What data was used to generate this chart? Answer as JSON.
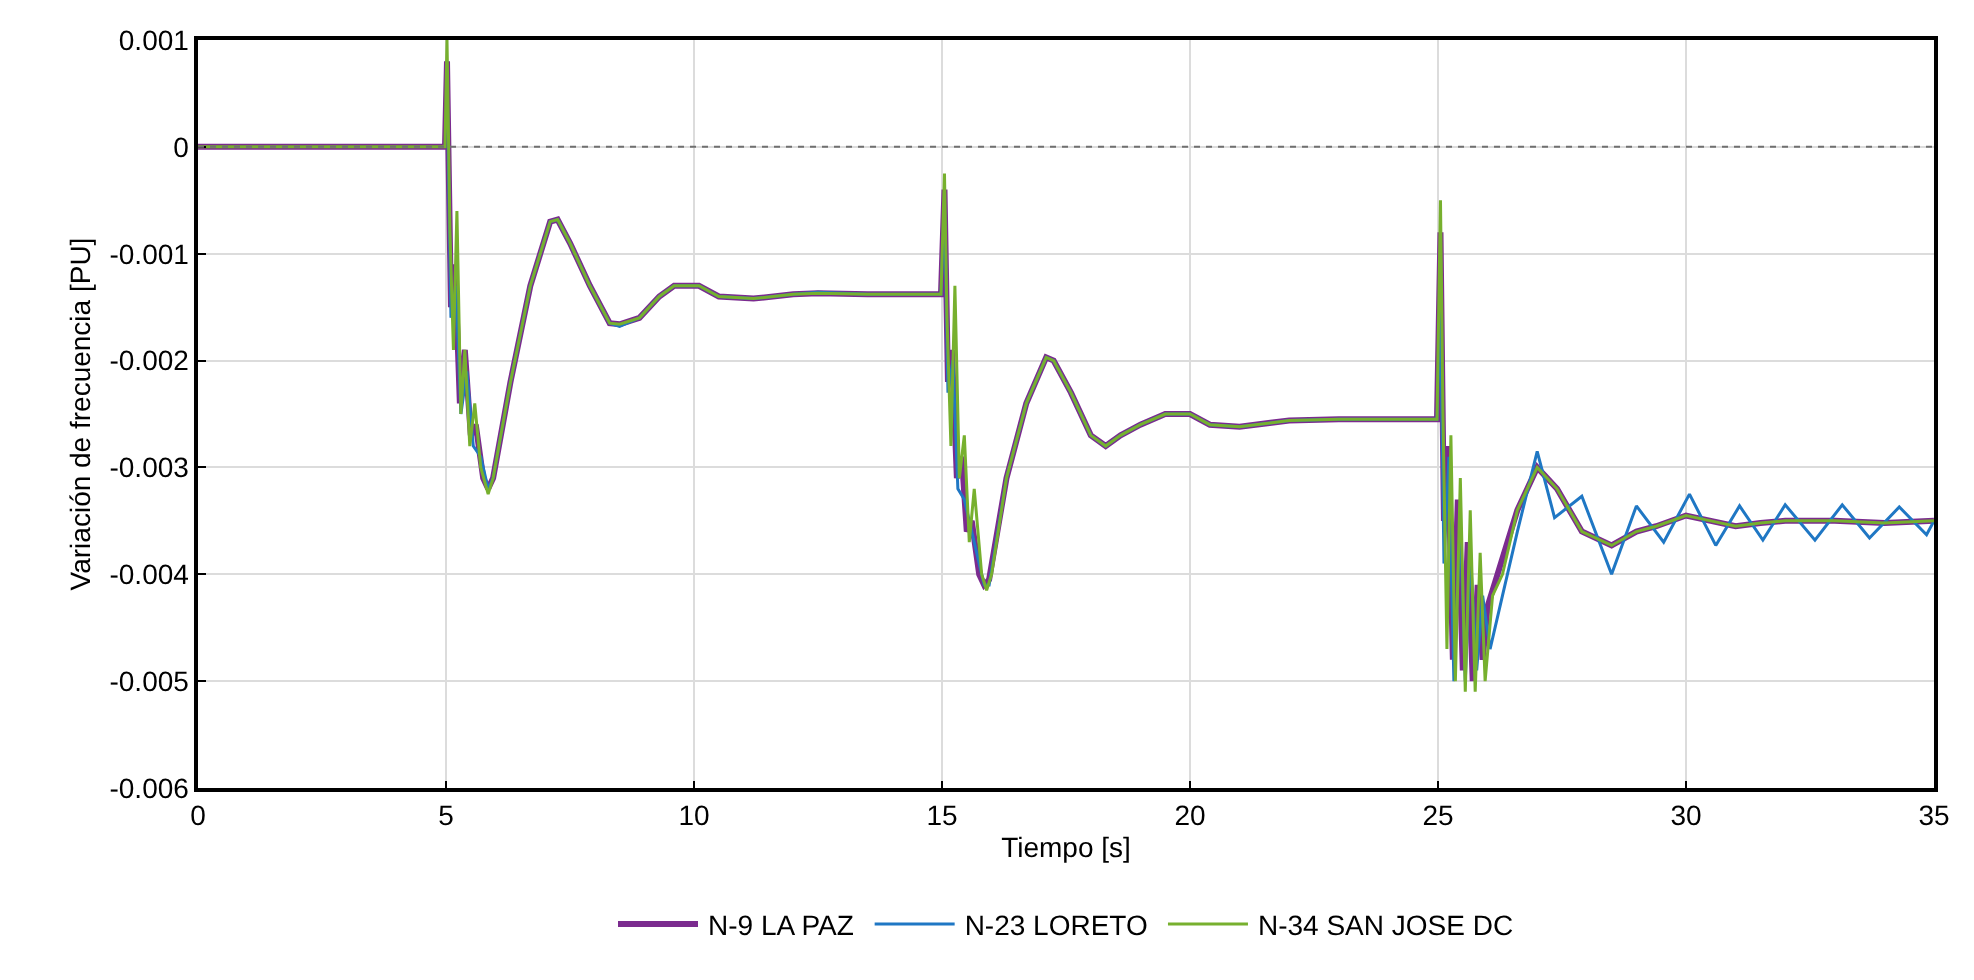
{
  "chart_data": {
    "type": "line",
    "xlabel": "Tiempo [s]",
    "ylabel": "Variación de frecuencia [PU]",
    "xlim": [
      0,
      35
    ],
    "xticks": [
      0,
      5,
      10,
      15,
      20,
      25,
      30,
      35
    ],
    "ylim": [
      -0.006,
      0.001
    ],
    "yticks": [
      -0.006,
      -0.005,
      -0.004,
      -0.003,
      -0.002,
      -0.001,
      0,
      0.001
    ],
    "grid": true,
    "legend": "bottom",
    "line_style": "solid",
    "marker": "none",
    "ref_lines": [
      {
        "axis": "y",
        "value": 0,
        "color": "#707070",
        "line_style": "dotted"
      }
    ],
    "series": [
      {
        "name": "N-9 LA PAZ",
        "color": "#7b2b8f",
        "x": [
          0,
          4.98,
          5.02,
          5.1,
          5.18,
          5.28,
          5.38,
          5.5,
          5.6,
          5.75,
          5.85,
          5.95,
          6.3,
          6.7,
          7.1,
          7.25,
          7.5,
          7.9,
          8.3,
          8.5,
          8.9,
          9.3,
          9.6,
          10.1,
          10.5,
          11.2,
          12,
          12.5,
          13.5,
          14.98,
          15.05,
          15.12,
          15.2,
          15.3,
          15.4,
          15.5,
          15.6,
          15.75,
          15.85,
          15.95,
          16.3,
          16.7,
          17.1,
          17.25,
          17.6,
          18.0,
          18.3,
          18.6,
          19.0,
          19.5,
          20,
          20.4,
          21,
          22,
          23,
          24.98,
          25.05,
          25.12,
          25.2,
          25.3,
          25.4,
          25.5,
          25.6,
          25.7,
          25.8,
          25.9,
          26.0,
          26.2,
          26.6,
          27.0,
          27.4,
          27.9,
          28.5,
          29.0,
          29.4,
          30,
          30.5,
          31,
          31.5,
          32,
          33,
          34,
          35
        ],
        "values": [
          0,
          0,
          0.0008,
          -0.0015,
          -0.0011,
          -0.0024,
          -0.0019,
          -0.0027,
          -0.0026,
          -0.0031,
          -0.0032,
          -0.0031,
          -0.0022,
          -0.0013,
          -0.0007,
          -0.00068,
          -0.0009,
          -0.0013,
          -0.00165,
          -0.00166,
          -0.0016,
          -0.0014,
          -0.0013,
          -0.0013,
          -0.0014,
          -0.00142,
          -0.00138,
          -0.00137,
          -0.00138,
          -0.00138,
          -0.0004,
          -0.0022,
          -0.0019,
          -0.0031,
          -0.0029,
          -0.0036,
          -0.0035,
          -0.004,
          -0.0041,
          -0.00405,
          -0.0031,
          -0.0024,
          -0.00197,
          -0.002,
          -0.0023,
          -0.0027,
          -0.0028,
          -0.0027,
          -0.0026,
          -0.0025,
          -0.0025,
          -0.0026,
          -0.00262,
          -0.00256,
          -0.00255,
          -0.00255,
          -0.0008,
          -0.0035,
          -0.0028,
          -0.0048,
          -0.0033,
          -0.0049,
          -0.0037,
          -0.005,
          -0.0041,
          -0.0048,
          -0.0043,
          -0.004,
          -0.0034,
          -0.003,
          -0.0032,
          -0.0036,
          -0.00373,
          -0.0036,
          -0.00355,
          -0.00345,
          -0.0035,
          -0.00355,
          -0.00352,
          -0.0035,
          -0.0035,
          -0.00352,
          -0.0035
        ]
      },
      {
        "name": "N-23 LORETO",
        "color": "#1f77c4",
        "x": [
          5.02,
          5.1,
          5.2,
          5.3,
          5.42,
          5.55,
          5.7,
          5.85,
          5.95,
          6.3,
          6.7,
          7.1,
          7.25,
          7.5,
          7.9,
          8.3,
          8.5,
          8.9,
          9.3,
          9.6,
          10.1,
          10.5,
          11.2,
          12,
          12.5,
          13.5,
          14.98,
          15.05,
          15.12,
          15.22,
          15.32,
          15.45,
          15.6,
          15.75,
          15.85,
          15.95,
          16.3,
          16.7,
          17.1,
          17.25,
          17.6,
          18.0,
          18.3,
          18.6,
          19.0,
          19.5,
          20,
          20.4,
          21,
          22,
          23,
          24.98,
          25.05,
          25.12,
          25.22,
          25.32,
          25.45,
          25.55,
          25.65,
          25.78,
          25.9,
          26.05,
          26.3,
          26.6,
          27.0,
          27.35,
          27.9,
          28.5,
          29.0,
          29.55,
          30.07,
          30.6,
          31.08,
          31.55,
          32.0,
          32.6,
          33.15,
          33.7,
          34.3,
          34.85,
          35
        ],
        "values": [
          0.0007,
          -0.0016,
          -0.0013,
          -0.0025,
          -0.0021,
          -0.0028,
          -0.0029,
          -0.0032,
          -0.0031,
          -0.0022,
          -0.0013,
          -0.0007,
          -0.00068,
          -0.0009,
          -0.0013,
          -0.00165,
          -0.00168,
          -0.0016,
          -0.0014,
          -0.0013,
          -0.0013,
          -0.0014,
          -0.00142,
          -0.00138,
          -0.00136,
          -0.00138,
          -0.00138,
          -0.0005,
          -0.0023,
          -0.002,
          -0.0032,
          -0.0033,
          -0.0036,
          -0.0039,
          -0.0041,
          -0.0041,
          -0.0031,
          -0.0024,
          -0.00197,
          -0.002,
          -0.0023,
          -0.0027,
          -0.0028,
          -0.0027,
          -0.0026,
          -0.0025,
          -0.0025,
          -0.0026,
          -0.00262,
          -0.00256,
          -0.00255,
          -0.00255,
          -0.0015,
          -0.0039,
          -0.0029,
          -0.005,
          -0.0035,
          -0.005,
          -0.0038,
          -0.0049,
          -0.0042,
          -0.0047,
          -0.0042,
          -0.0036,
          -0.00285,
          -0.00347,
          -0.00327,
          -0.004,
          -0.00336,
          -0.0037,
          -0.00325,
          -0.00373,
          -0.00336,
          -0.00368,
          -0.00335,
          -0.00368,
          -0.00335,
          -0.00366,
          -0.00337,
          -0.00363,
          -0.0035
        ]
      },
      {
        "name": "N-34 SAN JOSE DC",
        "color": "#77b02e",
        "x": [
          0,
          4.98,
          5.02,
          5.08,
          5.15,
          5.22,
          5.3,
          5.38,
          5.48,
          5.58,
          5.7,
          5.85,
          5.95,
          6.3,
          6.7,
          7.1,
          7.25,
          7.5,
          7.9,
          8.3,
          8.5,
          8.9,
          9.3,
          9.6,
          10.1,
          10.5,
          11.2,
          12,
          12.5,
          13.5,
          14.98,
          15.05,
          15.1,
          15.18,
          15.26,
          15.35,
          15.45,
          15.55,
          15.65,
          15.8,
          15.9,
          16.0,
          16.3,
          16.7,
          17.1,
          17.25,
          17.6,
          18.0,
          18.3,
          18.6,
          19.0,
          19.5,
          20,
          20.4,
          21,
          22,
          23,
          24.98,
          25.05,
          25.1,
          25.18,
          25.26,
          25.35,
          25.45,
          25.55,
          25.65,
          25.75,
          25.85,
          25.95,
          26.1,
          26.3,
          26.6,
          27.0,
          27.4,
          27.9,
          28.5,
          29.0,
          29.4,
          30,
          30.5,
          31,
          31.5,
          32,
          33,
          34,
          35
        ],
        "values": [
          0,
          0,
          0.001,
          -0.0008,
          -0.0019,
          -0.0006,
          -0.0025,
          -0.0019,
          -0.0028,
          -0.0024,
          -0.003,
          -0.00325,
          -0.0031,
          -0.0022,
          -0.0013,
          -0.0007,
          -0.00068,
          -0.0009,
          -0.0013,
          -0.00165,
          -0.00166,
          -0.0016,
          -0.0014,
          -0.0013,
          -0.0013,
          -0.0014,
          -0.00142,
          -0.00138,
          -0.00137,
          -0.00138,
          -0.00138,
          -0.00025,
          -0.0016,
          -0.0028,
          -0.0013,
          -0.0031,
          -0.0027,
          -0.0037,
          -0.0032,
          -0.004,
          -0.00415,
          -0.004,
          -0.0031,
          -0.0024,
          -0.00197,
          -0.002,
          -0.0023,
          -0.0027,
          -0.0028,
          -0.0027,
          -0.0026,
          -0.0025,
          -0.0025,
          -0.0026,
          -0.00262,
          -0.00256,
          -0.00255,
          -0.00255,
          -0.0005,
          -0.0025,
          -0.0047,
          -0.0027,
          -0.005,
          -0.0031,
          -0.0051,
          -0.0034,
          -0.0051,
          -0.0038,
          -0.005,
          -0.0042,
          -0.004,
          -0.0034,
          -0.003,
          -0.0032,
          -0.0036,
          -0.00373,
          -0.0036,
          -0.00355,
          -0.00345,
          -0.0035,
          -0.00355,
          -0.00352,
          -0.0035,
          -0.0035,
          -0.00352,
          -0.0035
        ]
      }
    ]
  }
}
